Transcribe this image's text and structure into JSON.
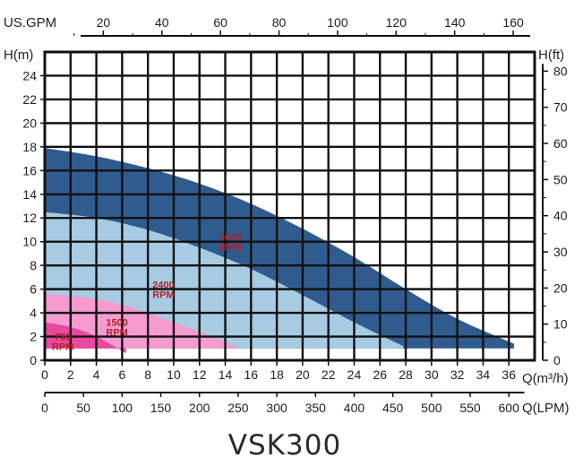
{
  "chart_data": {
    "type": "area",
    "title": "VSK300",
    "xlabel": "Q(m³/h)",
    "ylabel": "H(m)",
    "xlim": [
      0,
      38
    ],
    "ylim": [
      0,
      26
    ],
    "x_ticks": [
      0,
      2,
      4,
      6,
      8,
      10,
      12,
      14,
      16,
      18,
      20,
      22,
      24,
      26,
      28,
      30,
      32,
      34,
      36
    ],
    "y_ticks": [
      0,
      2,
      4,
      6,
      8,
      10,
      12,
      14,
      16,
      18,
      20,
      22,
      24
    ],
    "grid": true,
    "secondary_axes": {
      "top": {
        "label": "US.GPM",
        "ticks": [
          20,
          40,
          60,
          80,
          100,
          120,
          140,
          160
        ]
      },
      "right": {
        "label": "H(ft)",
        "ticks": [
          0,
          10,
          20,
          30,
          40,
          50,
          60,
          70,
          80
        ]
      },
      "bottom2": {
        "label": "Q(LPM)",
        "ticks": [
          0,
          50,
          100,
          150,
          200,
          250,
          300,
          350,
          400,
          450,
          500,
          550,
          600
        ]
      }
    },
    "series": [
      {
        "name": "3000 RPM",
        "color": "#2f5b8e",
        "label_lines": [
          "3000",
          "RPM"
        ],
        "x": [
          0,
          4,
          8,
          12,
          16,
          20,
          24,
          28,
          32,
          36.4
        ],
        "y": [
          17.9,
          17.2,
          16.2,
          14.9,
          13.2,
          11.1,
          8.7,
          6.0,
          3.5,
          1.4
        ]
      },
      {
        "name": "2400 RPM",
        "color": "#a6cbe2",
        "label_lines": [
          "2400",
          "RPM"
        ],
        "x": [
          0,
          4,
          8,
          12,
          16,
          20,
          24,
          27.8
        ],
        "y": [
          12.5,
          12.0,
          11.0,
          9.5,
          7.7,
          5.5,
          3.2,
          1.2
        ]
      },
      {
        "name": "1500 RPM",
        "color": "#f59bcf",
        "label_lines": [
          "1500",
          "RPM"
        ],
        "x": [
          0,
          3,
          6,
          9,
          12,
          15.2
        ],
        "y": [
          5.6,
          5.3,
          4.7,
          3.6,
          2.4,
          1.0
        ]
      },
      {
        "name": "750 RPM",
        "color": "#e8489e",
        "label_lines": [
          "750",
          "RPM"
        ],
        "x": [
          0,
          2,
          4,
          6.3
        ],
        "y": [
          3.2,
          2.8,
          2.0,
          0.6
        ]
      }
    ]
  }
}
